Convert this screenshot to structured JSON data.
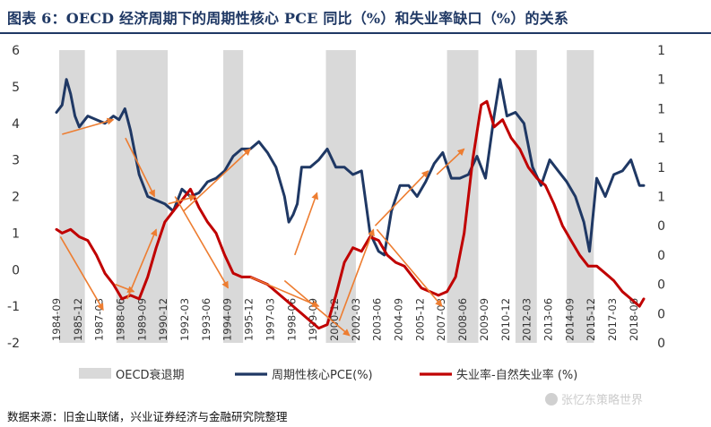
{
  "header": {
    "title": "图表 6：OECD 经济周期下的周期性核心 PCE 同比（%）和失业率缺口（%）的关系"
  },
  "footer": {
    "source": "数据来源：旧金山联储，兴业证券经济与金融研究院整理",
    "watermark": "张忆东策略世界"
  },
  "colors": {
    "pce": "#1f3864",
    "unemp": "#c00000",
    "recession": "#d9d9d9",
    "arrow": "#ed7d31"
  },
  "chart_data": {
    "type": "line",
    "title": "OECD 经济周期下的周期性核心 PCE 同比（%）和失业率缺口（%）的关系",
    "left_axis": {
      "min": -2,
      "max": 6,
      "ticks": [
        "-2",
        "-1",
        "0",
        "1",
        "2",
        "3",
        "4",
        "5",
        "6"
      ]
    },
    "right_axis": {
      "ticks": [
        "0",
        "0",
        "0",
        "0",
        "0",
        "1",
        "1",
        "1",
        "1",
        "1",
        "1"
      ]
    },
    "x_range": [
      1984.67,
      2019.0
    ],
    "x_tick_labels": [
      "1984-09",
      "1985-12",
      "1987-03",
      "1988-06",
      "1989-09",
      "1990-12",
      "1992-03",
      "1993-06",
      "1994-09",
      "1995-12",
      "1997-03",
      "1998-06",
      "1999-09",
      "2000-12",
      "2002-03",
      "2003-06",
      "2004-09",
      "2005-12",
      "2007-03",
      "2008-06",
      "2009-09",
      "2010-12",
      "2012-03",
      "2013-06",
      "2014-09",
      "2015-12",
      "2017-03",
      "2018-06"
    ],
    "recessions": [
      {
        "start": 1984.83,
        "end": 1986.33
      },
      {
        "start": 1988.17,
        "end": 1991.17
      },
      {
        "start": 1994.42,
        "end": 1995.58
      },
      {
        "start": 2000.42,
        "end": 2002.17
      },
      {
        "start": 2007.5,
        "end": 2009.33
      },
      {
        "start": 2011.5,
        "end": 2012.75
      },
      {
        "start": 2014.5,
        "end": 2016.08
      }
    ],
    "series": [
      {
        "name": "周期性核心PCE(%)",
        "axis": "left",
        "x": [
          1984.67,
          1985.0,
          1985.25,
          1985.5,
          1985.75,
          1986.0,
          1986.5,
          1987.0,
          1987.5,
          1988.0,
          1988.33,
          1988.67,
          1989.0,
          1989.5,
          1990.0,
          1990.5,
          1991.0,
          1991.5,
          1992.0,
          1992.5,
          1993.0,
          1993.5,
          1994.0,
          1994.5,
          1995.0,
          1995.5,
          1996.0,
          1996.5,
          1997.0,
          1997.5,
          1998.0,
          1998.25,
          1998.5,
          1998.75,
          1999.0,
          1999.5,
          2000.0,
          2000.5,
          2001.0,
          2001.5,
          2002.0,
          2002.5,
          2003.0,
          2003.5,
          2003.83,
          2004.25,
          2004.75,
          2005.25,
          2005.75,
          2006.25,
          2006.75,
          2007.25,
          2007.75,
          2008.25,
          2008.75,
          2009.25,
          2009.75,
          2010.25,
          2010.6,
          2011.0,
          2011.5,
          2012.0,
          2012.5,
          2013.0,
          2013.5,
          2014.0,
          2014.5,
          2015.0,
          2015.5,
          2015.83,
          2016.25,
          2016.75,
          2017.25,
          2017.75,
          2018.25,
          2018.75,
          2019.0
        ],
        "values": [
          4.3,
          4.5,
          5.2,
          4.8,
          4.2,
          3.9,
          4.2,
          4.1,
          4.0,
          4.2,
          4.1,
          4.4,
          3.8,
          2.6,
          2.0,
          1.9,
          1.8,
          1.6,
          2.2,
          2.0,
          2.1,
          2.4,
          2.5,
          2.7,
          3.1,
          3.3,
          3.3,
          3.5,
          3.2,
          2.8,
          2.0,
          1.3,
          1.5,
          1.8,
          2.8,
          2.8,
          3.0,
          3.3,
          2.8,
          2.8,
          2.6,
          2.7,
          1.0,
          0.5,
          0.4,
          1.6,
          2.3,
          2.3,
          2.0,
          2.4,
          2.9,
          3.2,
          2.5,
          2.5,
          2.6,
          3.1,
          2.5,
          4.2,
          5.2,
          4.2,
          4.3,
          4.0,
          2.8,
          2.3,
          3.0,
          2.7,
          2.4,
          2.0,
          1.3,
          0.5,
          2.5,
          2.0,
          2.6,
          2.7,
          3.0,
          2.3,
          2.3
        ]
      },
      {
        "name": "失业率-自然失业率 (%)",
        "axis": "left",
        "x": [
          1984.67,
          1985.0,
          1985.5,
          1986.0,
          1986.5,
          1987.0,
          1987.5,
          1988.0,
          1988.5,
          1989.0,
          1989.5,
          1990.0,
          1990.5,
          1991.0,
          1991.5,
          1992.0,
          1992.5,
          1993.0,
          1993.5,
          1994.0,
          1994.5,
          1995.0,
          1995.5,
          1996.0,
          1996.5,
          1997.0,
          1997.5,
          1998.0,
          1998.5,
          1999.0,
          1999.5,
          2000.0,
          2000.5,
          2001.0,
          2001.5,
          2002.0,
          2002.5,
          2003.0,
          2003.5,
          2004.0,
          2004.5,
          2005.0,
          2005.5,
          2006.0,
          2006.5,
          2007.0,
          2007.5,
          2008.0,
          2008.5,
          2009.0,
          2009.5,
          2009.83,
          2010.25,
          2010.75,
          2011.25,
          2011.75,
          2012.25,
          2012.75,
          2013.25,
          2013.75,
          2014.25,
          2014.75,
          2015.25,
          2015.75,
          2016.25,
          2016.75,
          2017.25,
          2017.75,
          2018.25,
          2018.75,
          2019.0
        ],
        "values": [
          1.1,
          1.0,
          1.1,
          0.9,
          0.8,
          0.4,
          -0.1,
          -0.4,
          -0.8,
          -0.7,
          -0.8,
          -0.2,
          0.6,
          1.3,
          1.6,
          1.9,
          2.2,
          1.7,
          1.3,
          1.0,
          0.4,
          -0.1,
          -0.2,
          -0.2,
          -0.3,
          -0.4,
          -0.6,
          -0.8,
          -1.0,
          -1.2,
          -1.4,
          -1.6,
          -1.5,
          -0.7,
          0.2,
          0.6,
          0.5,
          0.9,
          0.8,
          0.4,
          0.2,
          0.1,
          -0.2,
          -0.5,
          -0.6,
          -0.7,
          -0.6,
          -0.2,
          1.0,
          3.0,
          4.5,
          4.6,
          3.9,
          4.1,
          3.6,
          3.3,
          2.8,
          2.5,
          2.3,
          1.8,
          1.2,
          0.8,
          0.4,
          0.1,
          0.1,
          -0.1,
          -0.3,
          -0.6,
          -0.8,
          -1.0,
          -0.8
        ]
      }
    ],
    "legend": [
      {
        "label": "OECD衰退期",
        "kind": "bar"
      },
      {
        "label": "周期性核心PCE(%)",
        "kind": "line-navy"
      },
      {
        "label": "失业率-自然失业率 (%)",
        "kind": "line-red"
      }
    ],
    "arrows": [
      {
        "from": [
          1985.0,
          3.7
        ],
        "to": [
          1988.0,
          4.1
        ]
      },
      {
        "from": [
          1988.7,
          3.6
        ],
        "to": [
          1990.4,
          2.0
        ]
      },
      {
        "from": [
          1991.2,
          1.8
        ],
        "to": [
          1992.8,
          2.0
        ]
      },
      {
        "from": [
          1992.1,
          1.6
        ],
        "to": [
          1996.0,
          3.3
        ]
      },
      {
        "from": [
          1998.6,
          0.4
        ],
        "to": [
          1999.9,
          2.1
        ]
      },
      {
        "from": [
          2003.3,
          1.2
        ],
        "to": [
          2006.4,
          2.7
        ]
      },
      {
        "from": [
          2006.9,
          2.6
        ],
        "to": [
          2008.5,
          3.3
        ]
      },
      {
        "from": [
          1984.9,
          0.9
        ],
        "to": [
          1987.4,
          -1.1
        ]
      },
      {
        "from": [
          1988.1,
          -0.4
        ],
        "to": [
          1989.2,
          -0.6
        ]
      },
      {
        "from": [
          1988.8,
          -0.8
        ],
        "to": [
          1990.5,
          1.1
        ]
      },
      {
        "from": [
          1991.6,
          2.0
        ],
        "to": [
          1994.7,
          -0.5
        ]
      },
      {
        "from": [
          1996.0,
          -0.2
        ],
        "to": [
          2000.0,
          -1.0
        ]
      },
      {
        "from": [
          1998.0,
          -0.3
        ],
        "to": [
          2001.8,
          -1.8
        ]
      },
      {
        "from": [
          2001.2,
          -1.4
        ],
        "to": [
          2003.2,
          1.1
        ]
      },
      {
        "from": [
          2003.4,
          1.1
        ],
        "to": [
          2007.2,
          -1.0
        ]
      }
    ]
  }
}
